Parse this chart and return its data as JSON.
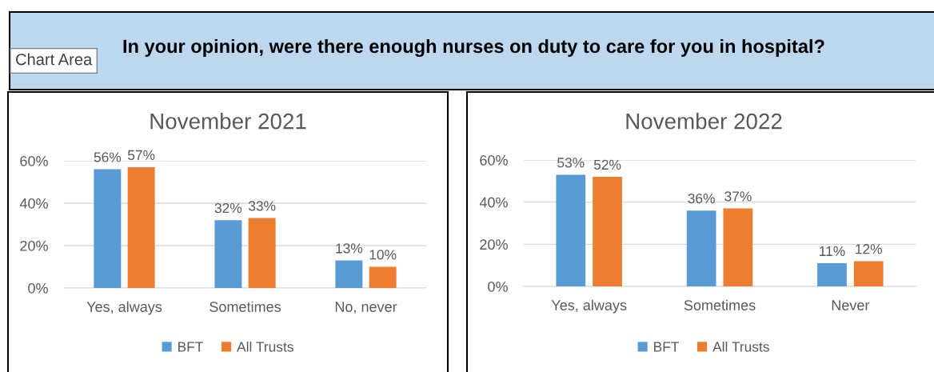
{
  "chart_data": [
    {
      "type": "other",
      "title": "In your opinion, were there enough nurses on duty to care for you in hospital?",
      "annotations": [
        "Chart Area"
      ]
    },
    {
      "type": "bar",
      "title": "November 2021",
      "categories": [
        "Yes, always",
        "Sometimes",
        "No, never"
      ],
      "series": [
        {
          "name": "BFT",
          "color": "#5b9bd5",
          "values": [
            56,
            32,
            13
          ],
          "value_labels": [
            "56%",
            "32%",
            "13%"
          ]
        },
        {
          "name": "All Trusts",
          "color": "#ed7d31",
          "values": [
            57,
            33,
            10
          ],
          "value_labels": [
            "57%",
            "33%",
            "10%"
          ]
        }
      ],
      "ylim": [
        0,
        60
      ],
      "yticks": [
        {
          "value": 0,
          "label": "0%"
        },
        {
          "value": 20,
          "label": "20%"
        },
        {
          "value": 40,
          "label": "40%"
        },
        {
          "value": 60,
          "label": "60%"
        }
      ],
      "grid": "y",
      "legend": "bottom"
    },
    {
      "type": "bar",
      "title": "November 2022",
      "categories": [
        "Yes, always",
        "Sometimes",
        "Never"
      ],
      "series": [
        {
          "name": "BFT",
          "color": "#5b9bd5",
          "values": [
            53,
            36,
            11
          ],
          "value_labels": [
            "53%",
            "36%",
            "11%"
          ]
        },
        {
          "name": "All Trusts",
          "color": "#ed7d31",
          "values": [
            52,
            37,
            12
          ],
          "value_labels": [
            "52%",
            "37%",
            "12%"
          ]
        }
      ],
      "ylim": [
        0,
        60
      ],
      "yticks": [
        {
          "value": 0,
          "label": "0%"
        },
        {
          "value": 20,
          "label": "20%"
        },
        {
          "value": 40,
          "label": "40%"
        },
        {
          "value": 60,
          "label": "60%"
        }
      ],
      "grid": "y",
      "legend": "bottom"
    }
  ]
}
